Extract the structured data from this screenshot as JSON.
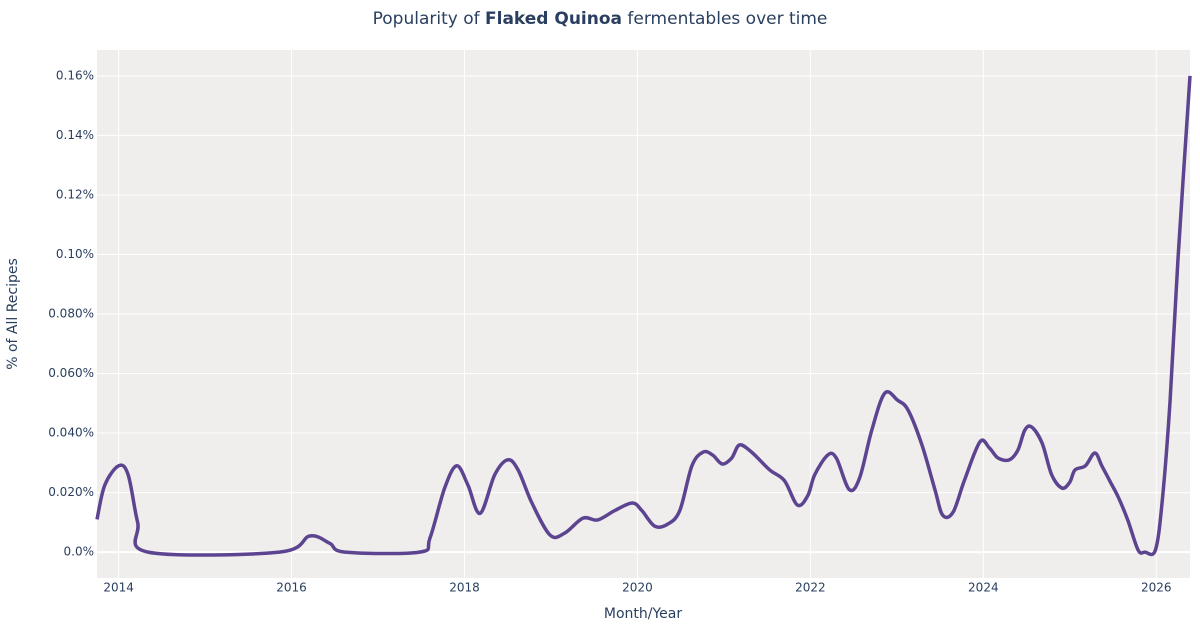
{
  "chart_data": {
    "type": "line",
    "title": [
      "Popularity of ",
      "Flaked Quinoa",
      " fermentables over time"
    ],
    "x_label": "Month/Year",
    "y_label": "% of All Recipes",
    "xlim": [
      2013.75,
      2026.39
    ],
    "xticks": [
      2014,
      2016,
      2018,
      2020,
      2022,
      2024,
      2026
    ],
    "ylim": [
      -0.0087,
      0.1687
    ],
    "yticks": [
      {
        "value": 0,
        "label": "0.0%"
      },
      {
        "value": 0.02,
        "label": "0.020%"
      },
      {
        "value": 0.04,
        "label": "0.040%"
      },
      {
        "value": 0.06,
        "label": "0.060%"
      },
      {
        "value": 0.08,
        "label": "0.080%"
      },
      {
        "value": 0.1,
        "label": "0.10%"
      },
      {
        "value": 0.12,
        "label": "0.12%"
      },
      {
        "value": 0.14,
        "label": "0.14%"
      },
      {
        "value": 0.16,
        "label": "0.16%"
      }
    ],
    "grid": true,
    "series": [
      {
        "color": "#5c4491",
        "x": [
          2013.75,
          2013.84,
          2014.0,
          2014.11,
          2014.22,
          2014.34,
          2015.86,
          2016.21,
          2016.44,
          2016.62,
          2017.48,
          2017.6,
          2017.77,
          2017.91,
          2018.04,
          2018.18,
          2018.35,
          2018.5,
          2018.62,
          2018.78,
          2018.99,
          2019.16,
          2019.37,
          2019.54,
          2019.74,
          2019.94,
          2020.05,
          2020.2,
          2020.35,
          2020.49,
          2020.63,
          2020.76,
          2020.87,
          2020.98,
          2021.09,
          2021.18,
          2021.32,
          2021.53,
          2021.7,
          2021.85,
          2021.97,
          2022.05,
          2022.2,
          2022.3,
          2022.45,
          2022.57,
          2022.71,
          2022.86,
          2023.01,
          2023.13,
          2023.29,
          2023.44,
          2023.53,
          2023.65,
          2023.78,
          2023.96,
          2024.07,
          2024.17,
          2024.3,
          2024.4,
          2024.48,
          2024.56,
          2024.68,
          2024.79,
          2024.91,
          2025.0,
          2025.06,
          2025.18,
          2025.29,
          2025.37,
          2025.47,
          2025.56,
          2025.67,
          2025.79,
          2025.87,
          2025.99,
          2026.07,
          2026.16,
          2026.25,
          2026.39
        ],
        "values": [
          0.011,
          0.0225,
          0.029,
          0.026,
          0.01,
          0.0,
          0.0,
          0.0054,
          0.003,
          0.0,
          0.0,
          0.0047,
          0.0215,
          0.029,
          0.0225,
          0.013,
          0.026,
          0.031,
          0.0276,
          0.0165,
          0.0057,
          0.0064,
          0.0114,
          0.0108,
          0.014,
          0.0165,
          0.014,
          0.0087,
          0.0094,
          0.014,
          0.029,
          0.0336,
          0.0326,
          0.0296,
          0.0316,
          0.036,
          0.0336,
          0.0276,
          0.024,
          0.0158,
          0.019,
          0.026,
          0.0326,
          0.0316,
          0.021,
          0.025,
          0.041,
          0.0534,
          0.051,
          0.0477,
          0.036,
          0.021,
          0.0124,
          0.0134,
          0.024,
          0.037,
          0.035,
          0.0316,
          0.031,
          0.0343,
          0.041,
          0.042,
          0.0366,
          0.026,
          0.0215,
          0.0235,
          0.0276,
          0.029,
          0.0333,
          0.029,
          0.0235,
          0.0185,
          0.0108,
          0.0007,
          0.0,
          0.0007,
          0.0175,
          0.051,
          0.098,
          0.16
        ]
      }
    ]
  }
}
